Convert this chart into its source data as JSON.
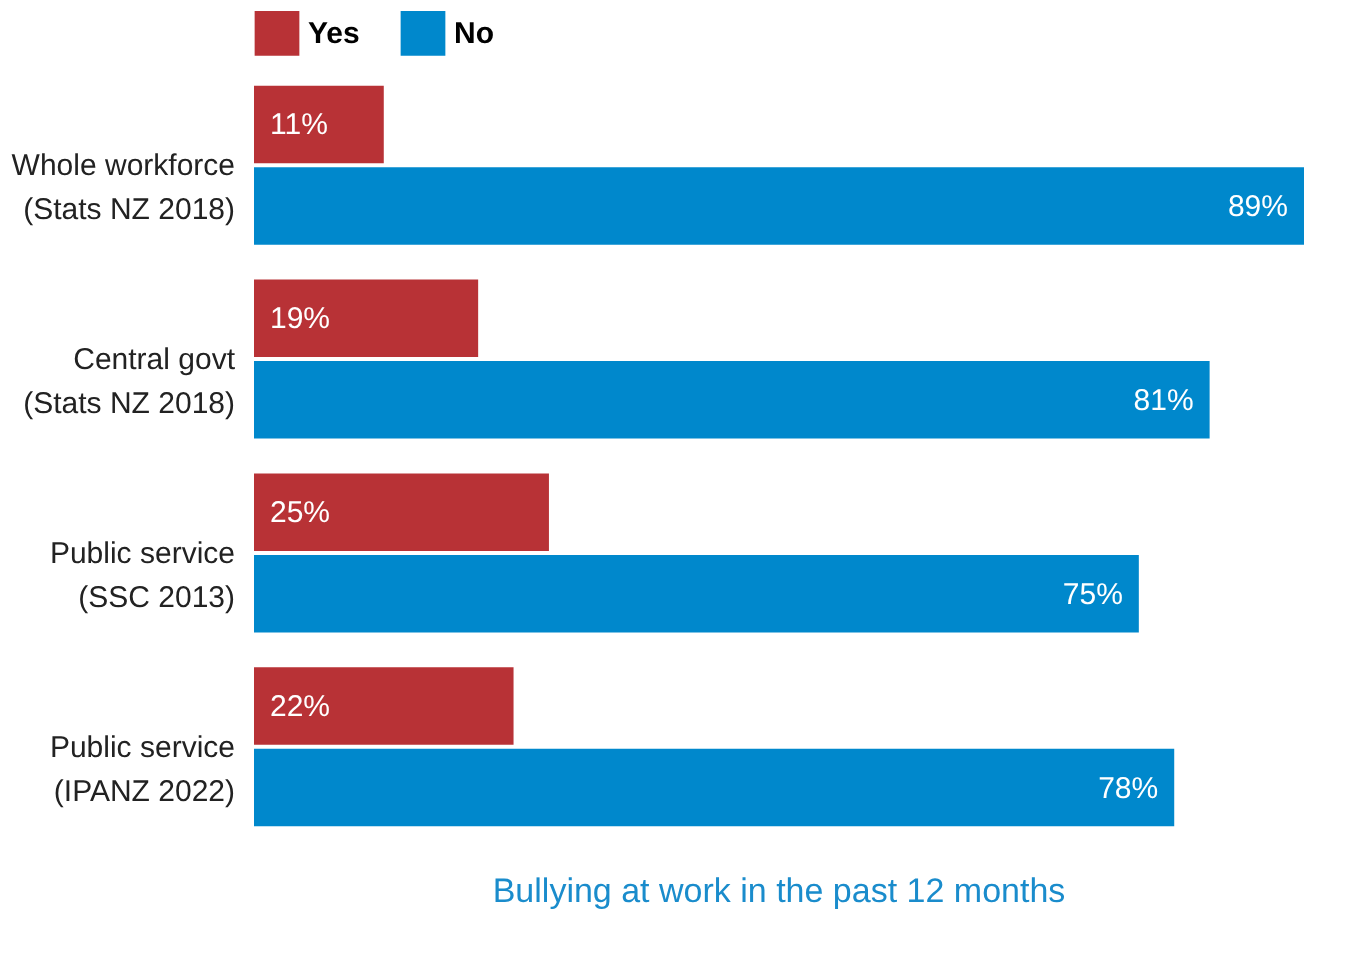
{
  "chart_data": {
    "type": "bar",
    "orientation": "horizontal",
    "xlabel": "Bullying at work in the past 12 months",
    "legend": "top",
    "categories": [
      "Whole workforce (Stats NZ 2018)",
      "Central govt (Stats NZ 2018)",
      "Public service (SSC 2013)",
      "Public service (IPANZ 2022)"
    ],
    "series": [
      {
        "name": "Yes",
        "color": "#b83236",
        "values": [
          11,
          19,
          25,
          22
        ],
        "value_labels": [
          "11%",
          "19%",
          "25%",
          "22%"
        ]
      },
      {
        "name": "No",
        "color": "#0088cc",
        "values": [
          89,
          81,
          75,
          78
        ],
        "value_labels": [
          "89%",
          "81%",
          "75%",
          "78%"
        ]
      }
    ]
  }
}
